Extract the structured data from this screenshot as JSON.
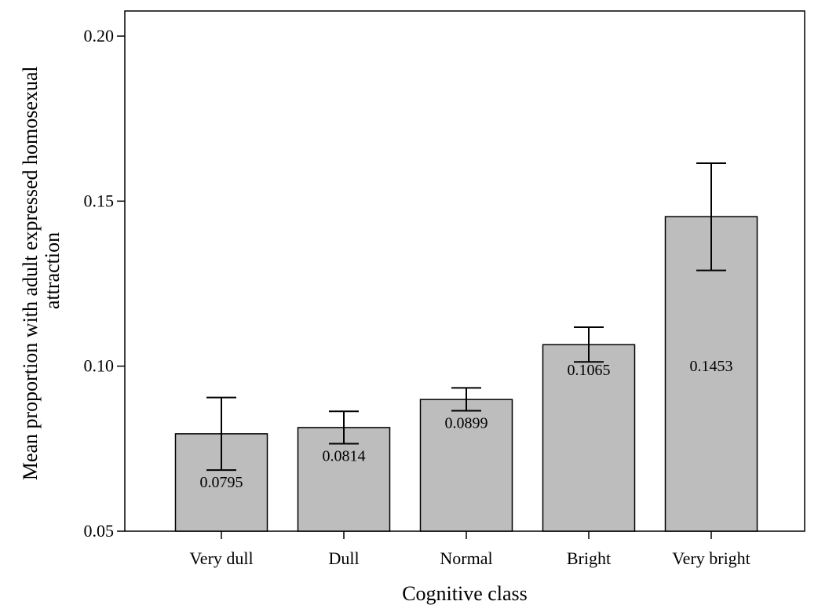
{
  "chart_data": {
    "type": "bar",
    "title": "",
    "xlabel": "Cognitive class",
    "ylabel_lines": [
      "Mean proportion with adult expressed homosexual",
      "attraction"
    ],
    "categories": [
      "Very dull",
      "Dull",
      "Normal",
      "Bright",
      "Very bright"
    ],
    "values": [
      0.0795,
      0.0814,
      0.0899,
      0.1065,
      0.1453
    ],
    "value_labels": [
      "0.0795",
      "0.0814",
      "0.0899",
      "0.1065",
      "0.1453"
    ],
    "error_low": [
      0.0685,
      0.0765,
      0.0865,
      0.1013,
      0.129
    ],
    "error_high": [
      0.0905,
      0.0863,
      0.0934,
      0.1118,
      0.1615
    ],
    "ylim": [
      0.05,
      0.2
    ],
    "yticks": [
      0.05,
      0.1,
      0.15,
      0.2
    ],
    "ytick_labels": [
      "0.05",
      "0.10",
      "0.15",
      "0.20"
    ],
    "grid": false,
    "legend": "none",
    "colors": {
      "bar_fill": "#bdbdbd",
      "bar_stroke": "#000000",
      "axis": "#000000"
    }
  }
}
